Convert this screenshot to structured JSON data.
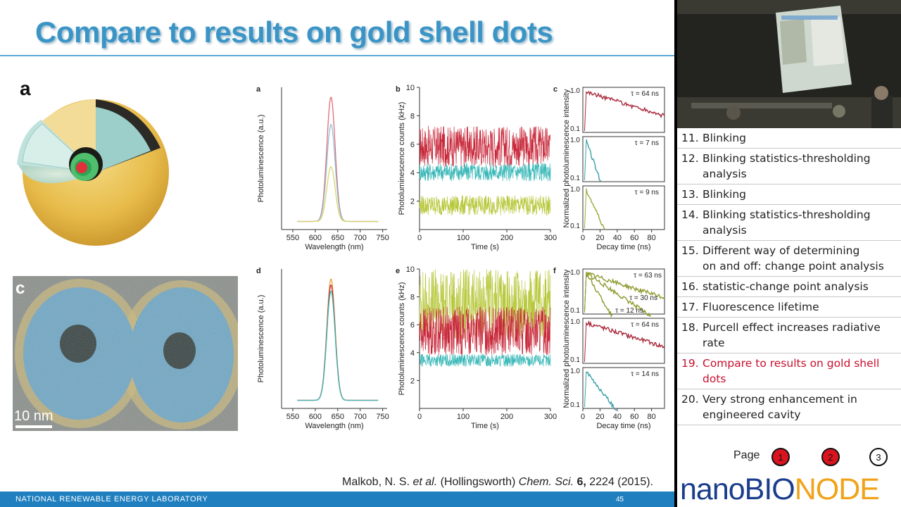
{
  "slide": {
    "title": "Compare to results on gold shell dots",
    "panel_a": "a",
    "panel_c": "c",
    "scale_bar": "10 nm",
    "footer_lab": "NATIONAL RENEWABLE ENERGY LABORATORY",
    "page_number": "45",
    "citation_pre": "Malkob, N. S. ",
    "citation_etal": "et al.",
    "citation_mid": " (Hollingsworth) ",
    "citation_journal": "Chem. Sci.",
    "citation_vol": " 6,",
    "citation_end": " 2224 (2015)."
  },
  "figure": {
    "panel_labels": [
      "a",
      "b",
      "c",
      "d",
      "e",
      "f"
    ],
    "pl_ylabel": "Photoluminescence (a.u.)",
    "pl_xlabel": "Wavelength (nm)",
    "pl_xticks": [
      "550",
      "600",
      "650",
      "700",
      "750"
    ],
    "trace_ylabel": "Photoluminescence counts (kHz)",
    "trace_xlabel": "Time (s)",
    "trace_xticks": [
      "0",
      "100",
      "200",
      "300"
    ],
    "trace_yticks": [
      "2",
      "4",
      "6",
      "8",
      "10"
    ],
    "decay_ylabel": "Normalized photoluminescence intensity",
    "decay_xlabel": "Decay time (ns)",
    "decay_xticks": [
      "0",
      "20",
      "40",
      "60",
      "80"
    ],
    "decay_yticks": [
      "1.0",
      "0.1"
    ],
    "tau_top": [
      "τ = 64 ns",
      "τ = 7 ns",
      "τ = 9 ns"
    ],
    "tau_bottom": [
      "τ = 63 ns",
      "τ = 30 ns",
      "τ = 12 ns",
      "τ = 64 ns",
      "τ = 14 ns"
    ]
  },
  "chart_data": [
    {
      "type": "line",
      "panel": "a",
      "xlabel": "Wavelength (nm)",
      "ylabel": "Photoluminescence (a.u.)",
      "xlim": [
        525,
        760
      ],
      "x": [
        600,
        620,
        630,
        635,
        640,
        650,
        670
      ],
      "series": [
        {
          "values": [
            0.05,
            0.35,
            0.85,
            1.0,
            0.85,
            0.35,
            0.04
          ]
        },
        {
          "values": [
            0.04,
            0.28,
            0.66,
            0.78,
            0.66,
            0.28,
            0.03
          ]
        },
        {
          "values": [
            0.03,
            0.16,
            0.37,
            0.44,
            0.37,
            0.16,
            0.02
          ]
        }
      ]
    },
    {
      "type": "line",
      "panel": "b",
      "xlabel": "Time (s)",
      "ylabel": "Photoluminescence counts (kHz)",
      "xlim": [
        0,
        300
      ],
      "ylim": [
        0,
        10
      ],
      "series": [
        {
          "color": "#c8283a",
          "mean": 5.7,
          "range": [
            4.4,
            7.3
          ]
        },
        {
          "color": "#3bb8b8",
          "mean": 4.0,
          "range": [
            3.4,
            4.7
          ]
        },
        {
          "color": "#b8c83c",
          "mean": 1.6,
          "range": [
            1.0,
            2.4
          ]
        }
      ]
    },
    {
      "type": "line",
      "panel": "c",
      "xlabel": "Decay time (ns)",
      "ylabel": "Normalized photoluminescence intensity",
      "xlim": [
        0,
        95
      ],
      "series": [
        {
          "color": "#a8283a",
          "tau_ns": 64
        },
        {
          "color": "#3b9fa8",
          "tau_ns": 7
        },
        {
          "color": "#9aa83c",
          "tau_ns": 9
        }
      ]
    },
    {
      "type": "line",
      "panel": "d",
      "xlabel": "Wavelength (nm)",
      "ylabel": "Photoluminescence (a.u.)",
      "xlim": [
        525,
        760
      ],
      "x": [
        600,
        620,
        630,
        635,
        640,
        650,
        670
      ],
      "series": [
        {
          "color": "#e3a23c",
          "values": [
            0.06,
            0.38,
            0.88,
            1.0,
            0.88,
            0.38,
            0.05
          ]
        },
        {
          "color": "#c8283a",
          "values": [
            0.06,
            0.36,
            0.84,
            0.95,
            0.84,
            0.36,
            0.05
          ]
        },
        {
          "color": "#3bb8b8",
          "values": [
            0.05,
            0.34,
            0.8,
            0.9,
            0.8,
            0.34,
            0.05
          ]
        }
      ]
    },
    {
      "type": "line",
      "panel": "e",
      "xlabel": "Time (s)",
      "ylabel": "Photoluminescence counts (kHz)",
      "xlim": [
        0,
        300
      ],
      "ylim": [
        0,
        10
      ],
      "series": [
        {
          "color": "#b8c83c",
          "mean": 7.6,
          "range": [
            5.0,
            10.0
          ]
        },
        {
          "color": "#c8283a",
          "mean": 5.3,
          "range": [
            3.8,
            7.3
          ]
        },
        {
          "color": "#3bb8b8",
          "mean": 3.4,
          "range": [
            3.0,
            3.9
          ]
        }
      ]
    },
    {
      "type": "line",
      "panel": "f",
      "xlabel": "Decay time (ns)",
      "ylabel": "Normalized photoluminescence intensity",
      "xlim": [
        0,
        95
      ],
      "series": [
        {
          "color": "#8f9a2e",
          "tau_ns": 63
        },
        {
          "color": "#8f9a2e",
          "tau_ns": 30
        },
        {
          "color": "#8f9a2e",
          "tau_ns": 12
        },
        {
          "color": "#a8283a",
          "tau_ns": 64
        },
        {
          "color": "#3b9fa8",
          "tau_ns": 14
        }
      ]
    }
  ],
  "toc": {
    "items": [
      {
        "num": "11.",
        "line1": "Blinking",
        "line2": "",
        "active": false
      },
      {
        "num": "12.",
        "line1": "Blinking statistics-thresholding",
        "line2": "analysis",
        "active": false
      },
      {
        "num": "13.",
        "line1": "Blinking",
        "line2": "",
        "active": false
      },
      {
        "num": "14.",
        "line1": "Blinking statistics-thresholding",
        "line2": "analysis",
        "active": false
      },
      {
        "num": "15.",
        "line1": "Different way of determining",
        "line2": "on and off: change point analysis",
        "active": false
      },
      {
        "num": "16.",
        "line1": "statistic-change point analysis",
        "line2": "",
        "active": false
      },
      {
        "num": "17.",
        "line1": "Fluorescence lifetime",
        "line2": "",
        "active": false
      },
      {
        "num": "18.",
        "line1": "Purcell effect increases radiative",
        "line2": "rate",
        "active": false
      },
      {
        "num": "19.",
        "line1": "Compare to results on gold shell",
        "line2": "dots",
        "active": true
      },
      {
        "num": "20.",
        "line1": "Very strong enhancement in",
        "line2": "engineered cavity",
        "active": false
      }
    ],
    "active_color": "#c8102e"
  },
  "pager": {
    "label": "Page",
    "pages": [
      "1",
      "2",
      "3"
    ]
  },
  "brand": {
    "part1": "nano",
    "part2": "BIO",
    "part3": "NODE"
  }
}
